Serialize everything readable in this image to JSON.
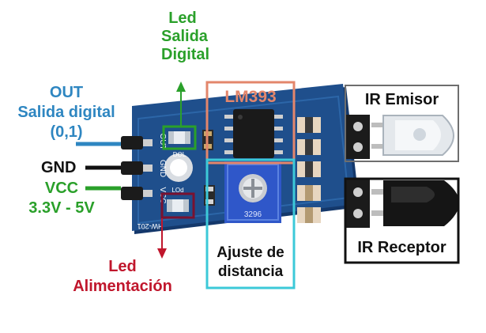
{
  "labels": {
    "led_salida_digital": [
      "Led",
      "Salida",
      "Digital"
    ],
    "out": [
      "OUT",
      "Salida digital",
      "(0,1)"
    ],
    "gnd": "GND",
    "vcc": [
      "VCC",
      "3.3V - 5V"
    ],
    "led_alimentacion": [
      "Led",
      "Alimentación"
    ],
    "lm393": "LM393",
    "ir_emisor": "IR Emisor",
    "ir_receptor": "IR Receptor",
    "ajuste": [
      "Ajuste de",
      "distancia"
    ]
  },
  "board_text": {
    "pins": [
      "OUT",
      "GND",
      "VCC"
    ],
    "led_marks": [
      "DOL",
      "LOd"
    ],
    "model": "HW-201",
    "pot_code": "3296"
  },
  "colors": {
    "green": "#2aa02a",
    "blue": "#2e86c1",
    "red": "#c0162c",
    "black": "#111111",
    "orange_box": "#e3866b",
    "cyan_box": "#3cc9d8",
    "pcb": "#1f4f8c"
  }
}
